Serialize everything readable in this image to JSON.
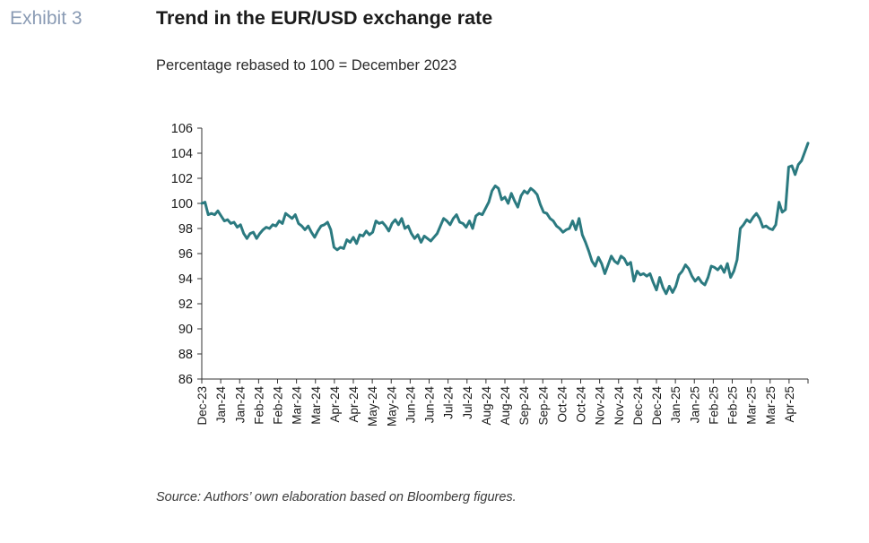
{
  "header": {
    "exhibit": "Exhibit 3",
    "title": "Trend in the EUR/USD exchange rate",
    "subtitle": "Percentage rebased to 100 = December 2023"
  },
  "footer": {
    "source": "Source: Authors’ own elaboration based on Bloomberg figures."
  },
  "colors": {
    "line": "#2b7a80",
    "axis": "#333333",
    "text": "#1b1b1b"
  },
  "chart_data": {
    "type": "line",
    "title": "Trend in the EUR/USD exchange rate",
    "subtitle": "Percentage rebased to 100 = December 2023",
    "ylim": [
      86,
      106
    ],
    "yticks": [
      86,
      88,
      90,
      92,
      94,
      96,
      98,
      100,
      102,
      104,
      106
    ],
    "grid": false,
    "xticks": [
      "Dec-23",
      "Jan-24",
      "Jan-24",
      "Feb-24",
      "Feb-24",
      "Mar-24",
      "Mar-24",
      "Apr-24",
      "Apr-24",
      "May-24",
      "May-24",
      "Jun-24",
      "Jun-24",
      "Jul-24",
      "Jul-24",
      "Aug-24",
      "Aug-24",
      "Sep-24",
      "Sep-24",
      "Oct-24",
      "Oct-24",
      "Nov-24",
      "Nov-24",
      "Dec-24",
      "Dec-24",
      "Jan-25",
      "Jan-25",
      "Feb-25",
      "Feb-25",
      "Mar-25",
      "Mar-25",
      "Apr-25"
    ],
    "series": [
      {
        "values": [
          100.0,
          100.1,
          99.1,
          99.2,
          99.1,
          99.4,
          99.0,
          98.6,
          98.7,
          98.4,
          98.5,
          98.1,
          98.3,
          97.6,
          97.2,
          97.6,
          97.7,
          97.2,
          97.6,
          97.9,
          98.1,
          98.0,
          98.3,
          98.2,
          98.6,
          98.4,
          99.2,
          99.0,
          98.8,
          99.1,
          98.4,
          98.2,
          97.9,
          98.2,
          97.7,
          97.3,
          97.8,
          98.2,
          98.3,
          98.5,
          97.9,
          96.5,
          96.3,
          96.5,
          96.4,
          97.1,
          96.9,
          97.3,
          96.8,
          97.5,
          97.4,
          97.8,
          97.5,
          97.7,
          98.6,
          98.4,
          98.5,
          98.2,
          97.8,
          98.4,
          98.7,
          98.3,
          98.8,
          98.0,
          98.2,
          97.6,
          97.2,
          97.5,
          96.9,
          97.4,
          97.2,
          97.0,
          97.3,
          97.6,
          98.2,
          98.8,
          98.6,
          98.3,
          98.8,
          99.1,
          98.5,
          98.4,
          98.1,
          98.6,
          98.0,
          99.0,
          99.2,
          99.1,
          99.6,
          100.1,
          101.0,
          101.4,
          101.2,
          100.3,
          100.5,
          100.0,
          100.8,
          100.2,
          99.7,
          100.6,
          101.0,
          100.8,
          101.2,
          101.0,
          100.7,
          99.9,
          99.3,
          99.2,
          98.8,
          98.6,
          98.2,
          98.0,
          97.7,
          97.9,
          98.0,
          98.6,
          97.9,
          98.8,
          97.5,
          96.9,
          96.2,
          95.4,
          95.0,
          95.7,
          95.2,
          94.4,
          95.1,
          95.8,
          95.4,
          95.2,
          95.8,
          95.6,
          95.1,
          95.3,
          93.8,
          94.6,
          94.3,
          94.4,
          94.2,
          94.4,
          93.7,
          93.1,
          94.1,
          93.3,
          92.8,
          93.4,
          92.9,
          93.4,
          94.3,
          94.6,
          95.1,
          94.8,
          94.2,
          93.8,
          94.1,
          93.7,
          93.5,
          94.1,
          95.0,
          94.9,
          94.7,
          95.0,
          94.5,
          95.2,
          94.1,
          94.6,
          95.5,
          98.0,
          98.3,
          98.7,
          98.5,
          98.9,
          99.2,
          98.8,
          98.1,
          98.2,
          98.0,
          97.9,
          98.3,
          100.1,
          99.3,
          99.5,
          102.9,
          103.0,
          102.3,
          103.1,
          103.4,
          104.1,
          104.8
        ]
      }
    ]
  }
}
